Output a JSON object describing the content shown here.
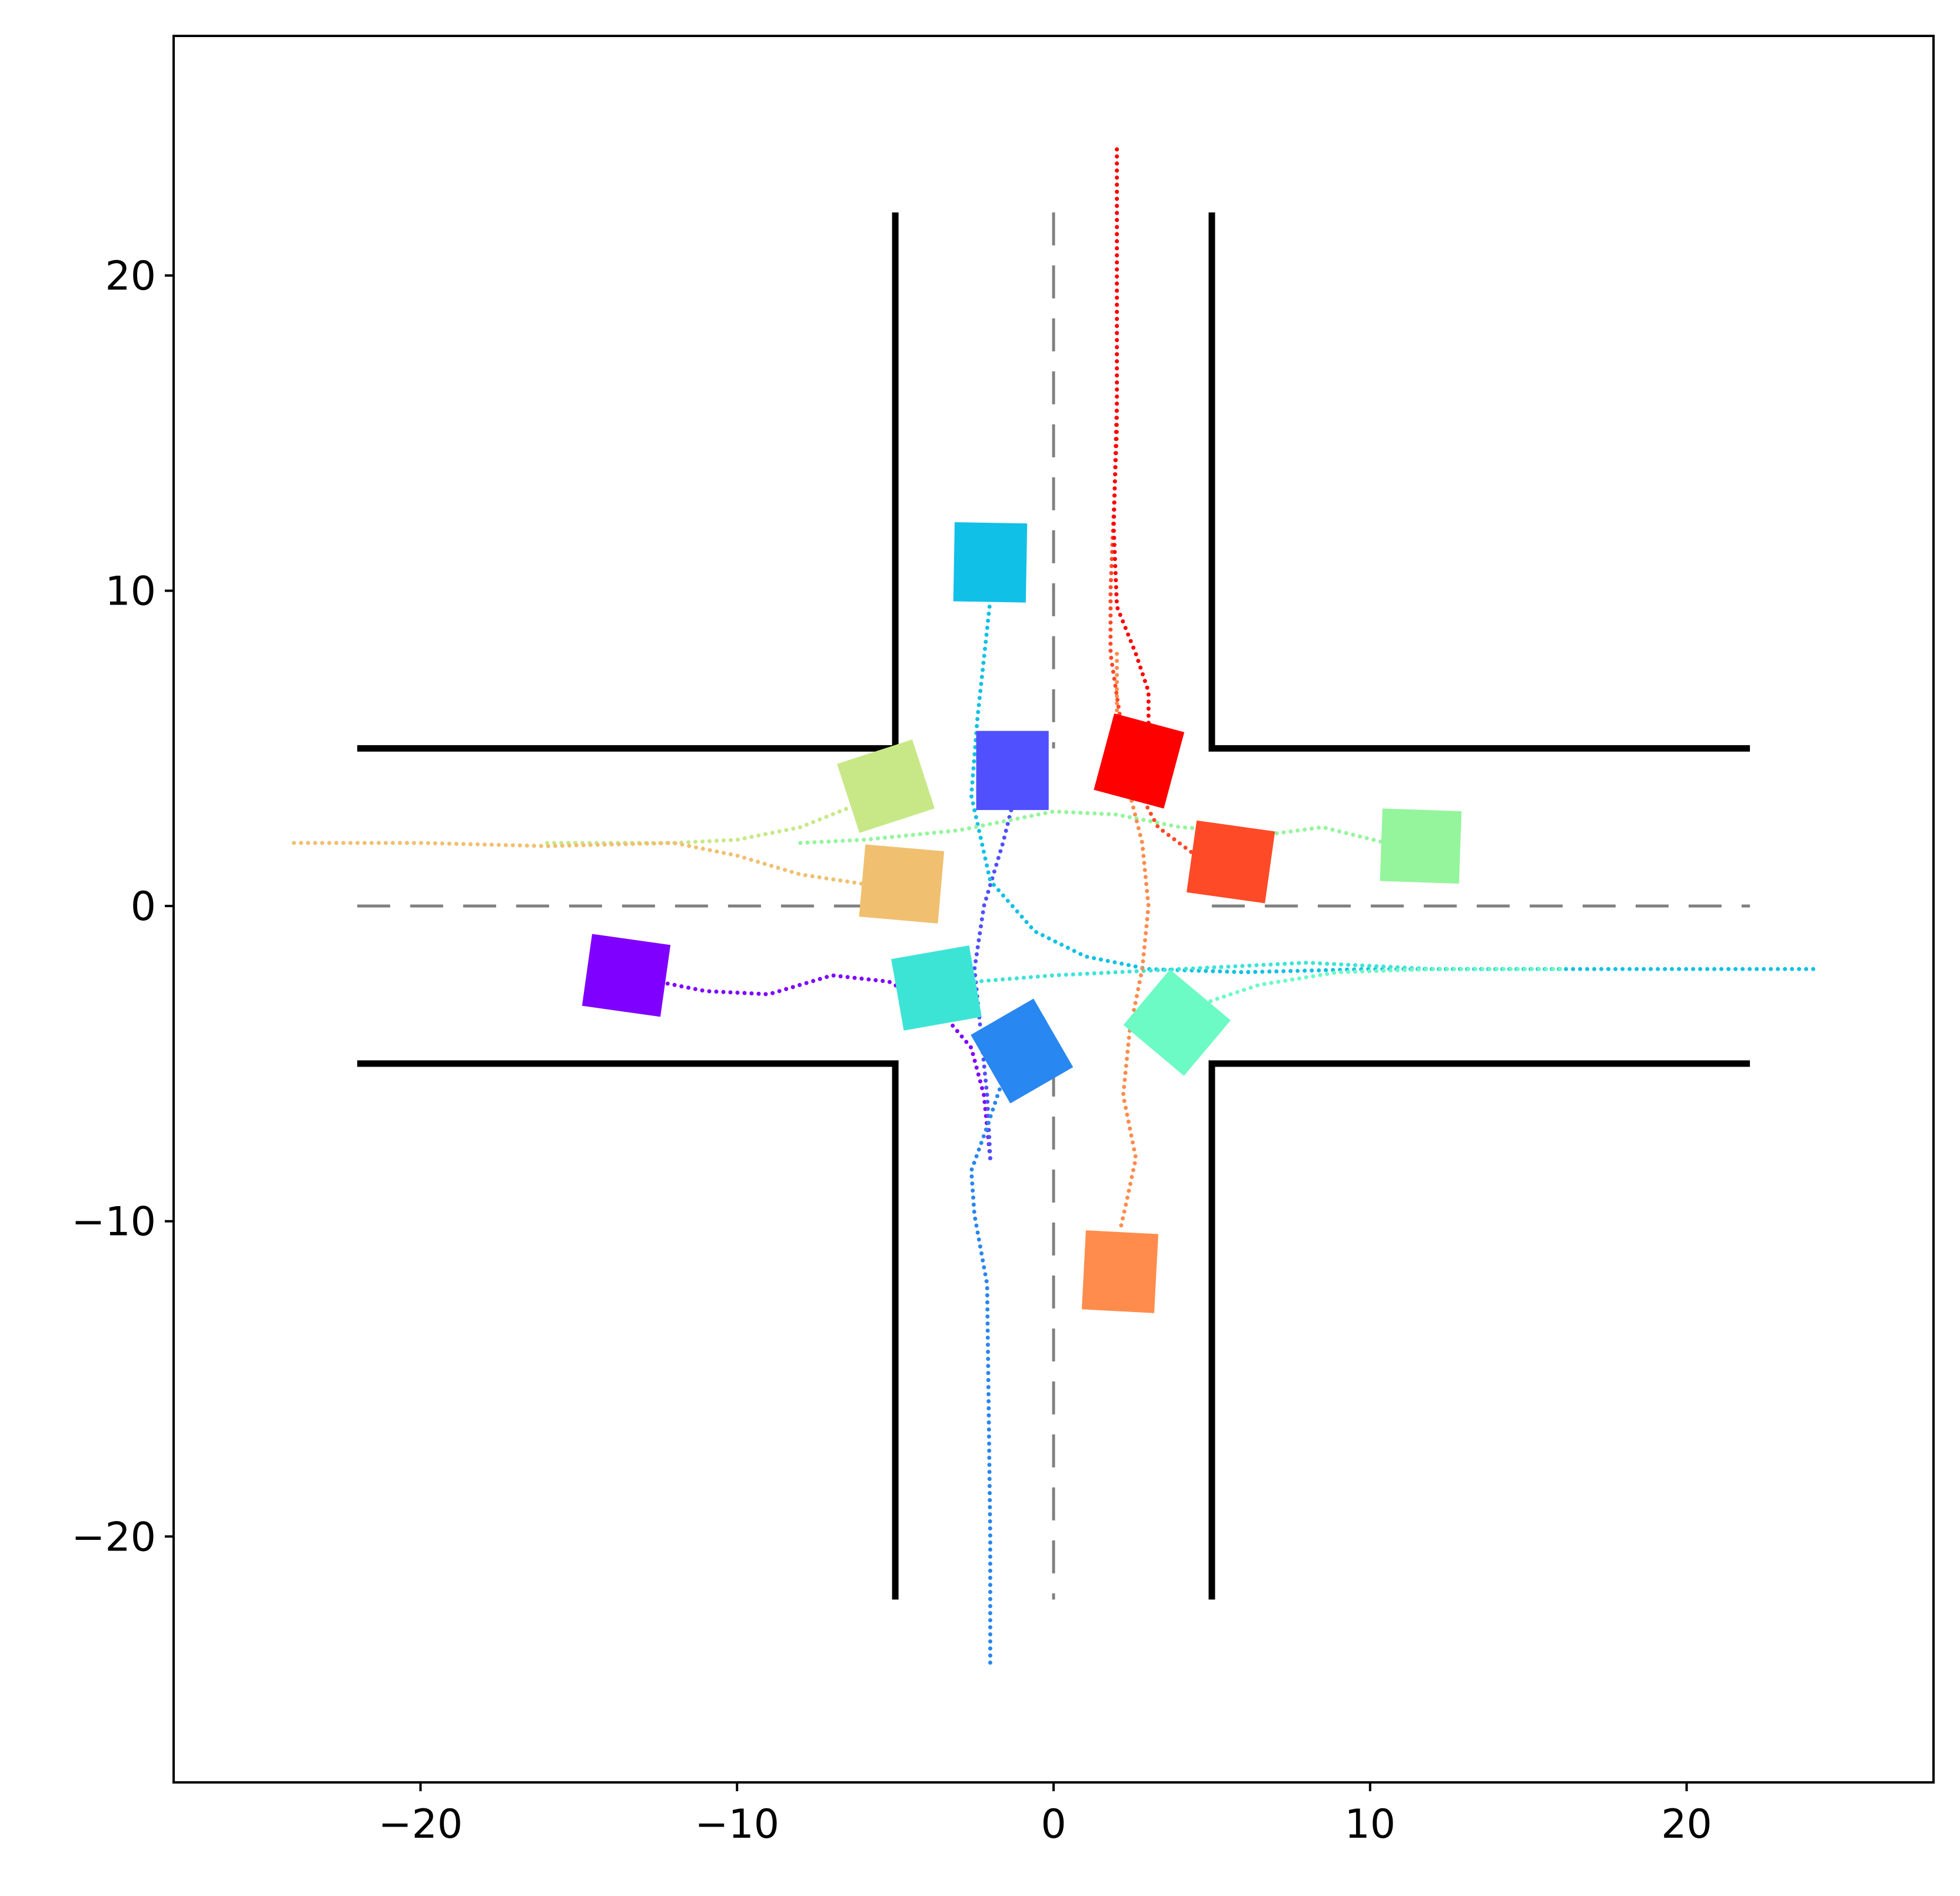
{
  "chart_data": {
    "type": "scatter",
    "title": "",
    "xlabel": "",
    "ylabel": "",
    "xlim": [
      -27.8,
      27.8
    ],
    "ylim": [
      -27.8,
      27.6
    ],
    "grid": false,
    "legend": "none",
    "x_ticks": [
      -20,
      -10,
      0,
      10,
      20
    ],
    "y_ticks": [
      20,
      10,
      0,
      -10,
      -20
    ],
    "x_tick_labels": [
      "−20",
      "−10",
      "0",
      "10",
      "20"
    ],
    "y_tick_labels": [
      "20",
      "10",
      "0",
      "−10",
      "−20"
    ],
    "road_edges": [
      [
        [
          -5,
          22
        ],
        [
          -5,
          5
        ],
        [
          -22,
          5
        ]
      ],
      [
        [
          5,
          22
        ],
        [
          5,
          5
        ],
        [
          22,
          5
        ]
      ],
      [
        [
          -22,
          -5
        ],
        [
          -5,
          -5
        ],
        [
          -5,
          -22
        ]
      ],
      [
        [
          22,
          -5
        ],
        [
          5,
          -5
        ],
        [
          5,
          -22
        ]
      ]
    ],
    "lane_centerlines": [
      [
        [
          0,
          22
        ],
        [
          0,
          5
        ]
      ],
      [
        [
          0,
          -5
        ],
        [
          0,
          -22
        ]
      ],
      [
        [
          -22,
          0
        ],
        [
          -5,
          0
        ]
      ],
      [
        [
          5,
          0
        ],
        [
          22,
          0
        ]
      ]
    ],
    "colors": {
      "road_edge": "#000000",
      "lane_divider": "#808080",
      "axes": "#000000"
    },
    "series": [
      {
        "color": "#8000ff",
        "vehicle": {
          "x": -13.5,
          "y": -2.2,
          "heading_deg": -8
        },
        "path": [
          [
            -2,
            -8
          ],
          [
            -2.2,
            -6
          ],
          [
            -2.6,
            -4.5
          ],
          [
            -3.6,
            -3.3
          ],
          [
            -5.2,
            -2.4
          ],
          [
            -7,
            -2.2
          ],
          [
            -9,
            -2.8
          ],
          [
            -11,
            -2.7
          ],
          [
            -13.5,
            -2.2
          ]
        ]
      },
      {
        "color": "#5050ff",
        "vehicle": {
          "x": -1.3,
          "y": 4.3,
          "heading_deg": 90
        },
        "path": [
          [
            -2,
            -8
          ],
          [
            -2.1,
            -6
          ],
          [
            -2.3,
            -4
          ],
          [
            -2.5,
            -2
          ],
          [
            -2.2,
            0
          ],
          [
            -1.6,
            2
          ],
          [
            -1.3,
            3.2
          ]
        ]
      },
      {
        "color": "#2887f0",
        "vehicle": {
          "x": -1,
          "y": -4.6,
          "heading_deg": 120
        },
        "path": [
          [
            -2,
            -24
          ],
          [
            -2,
            -20
          ],
          [
            -2.05,
            -16
          ],
          [
            -2.1,
            -12
          ],
          [
            -2.5,
            -9.8
          ],
          [
            -2.6,
            -8.4
          ],
          [
            -2.1,
            -7
          ],
          [
            -1.6,
            -5.5
          ]
        ]
      },
      {
        "color": "#10c0e6",
        "vehicle": {
          "x": -2,
          "y": 10.9,
          "heading_deg": 89
        },
        "path": [
          [
            24,
            -2
          ],
          [
            20,
            -2
          ],
          [
            15,
            -2
          ],
          [
            10,
            -2
          ],
          [
            6,
            -2.1
          ],
          [
            3,
            -2
          ],
          [
            1,
            -1.6
          ],
          [
            -0.6,
            -0.8
          ],
          [
            -2,
            0.8
          ],
          [
            -2.6,
            3.5
          ],
          [
            -2.4,
            6
          ],
          [
            -2,
            9.7
          ]
        ]
      },
      {
        "color": "#3ce4d6",
        "vehicle": {
          "x": -3.7,
          "y": -2.6,
          "heading_deg": 10
        },
        "path": [
          [
            16,
            -2
          ],
          [
            12,
            -2
          ],
          [
            8,
            -1.8
          ],
          [
            4,
            -2
          ],
          [
            0,
            -2.2
          ],
          [
            -2.5,
            -2.4
          ]
        ]
      },
      {
        "color": "#6cfbc4",
        "vehicle": {
          "x": 3.9,
          "y": -3.7,
          "heading_deg": 140
        },
        "path": [
          [
            16,
            -2
          ],
          [
            12,
            -2
          ],
          [
            9,
            -2.1
          ],
          [
            6.5,
            -2.5
          ],
          [
            5,
            -3
          ],
          [
            4.4,
            -3.3
          ]
        ]
      },
      {
        "color": "#94f59c",
        "vehicle": {
          "x": 11.6,
          "y": 1.9,
          "heading_deg": -2
        },
        "path": [
          [
            -8,
            2
          ],
          [
            -6,
            2.1
          ],
          [
            -3,
            2.4
          ],
          [
            0,
            3
          ],
          [
            2,
            2.9
          ],
          [
            4,
            2.5
          ],
          [
            7,
            2.3
          ],
          [
            8.5,
            2.5
          ],
          [
            10.5,
            2
          ]
        ]
      },
      {
        "color": "#c8e888",
        "vehicle": {
          "x": -5.3,
          "y": 3.8,
          "heading_deg": 18
        },
        "path": [
          [
            -16,
            2
          ],
          [
            -12,
            2
          ],
          [
            -10,
            2.1
          ],
          [
            -8,
            2.5
          ],
          [
            -6.5,
            3.1
          ]
        ]
      },
      {
        "color": "#f0c070",
        "vehicle": {
          "x": -4.8,
          "y": 0.7,
          "heading_deg": -5
        },
        "path": [
          [
            -24,
            2
          ],
          [
            -20,
            2
          ],
          [
            -16,
            1.9
          ],
          [
            -12,
            2
          ],
          [
            -10,
            1.6
          ],
          [
            -8,
            1
          ],
          [
            -6,
            0.7
          ]
        ]
      },
      {
        "color": "#ff8c4c",
        "vehicle": {
          "x": 2.1,
          "y": -11.6,
          "heading_deg": 87
        },
        "path": [
          [
            2,
            8
          ],
          [
            2,
            6
          ],
          [
            2.3,
            4
          ],
          [
            2.8,
            2
          ],
          [
            3,
            0
          ],
          [
            2.8,
            -2
          ],
          [
            2.4,
            -4
          ],
          [
            2.2,
            -6
          ],
          [
            2.6,
            -8
          ],
          [
            2.3,
            -9.4
          ],
          [
            2.1,
            -10.3
          ]
        ]
      },
      {
        "color": "#ff4a28",
        "vehicle": {
          "x": 5.6,
          "y": 1.4,
          "heading_deg": -8
        },
        "path": [
          [
            2,
            24
          ],
          [
            2,
            20
          ],
          [
            2,
            15
          ],
          [
            1.8,
            10
          ],
          [
            1.8,
            8
          ],
          [
            2.1,
            6
          ],
          [
            2.5,
            4
          ],
          [
            3.3,
            2.5
          ],
          [
            4.5,
            1.6
          ]
        ]
      },
      {
        "color": "#ff0000",
        "vehicle": {
          "x": 2.7,
          "y": 4.6,
          "heading_deg": 75
        },
        "path": [
          [
            2,
            24
          ],
          [
            2,
            20
          ],
          [
            2,
            16
          ],
          [
            1.9,
            12
          ],
          [
            2,
            9.5
          ],
          [
            2.6,
            8
          ],
          [
            3,
            6.8
          ],
          [
            3,
            5.8
          ]
        ]
      }
    ]
  }
}
